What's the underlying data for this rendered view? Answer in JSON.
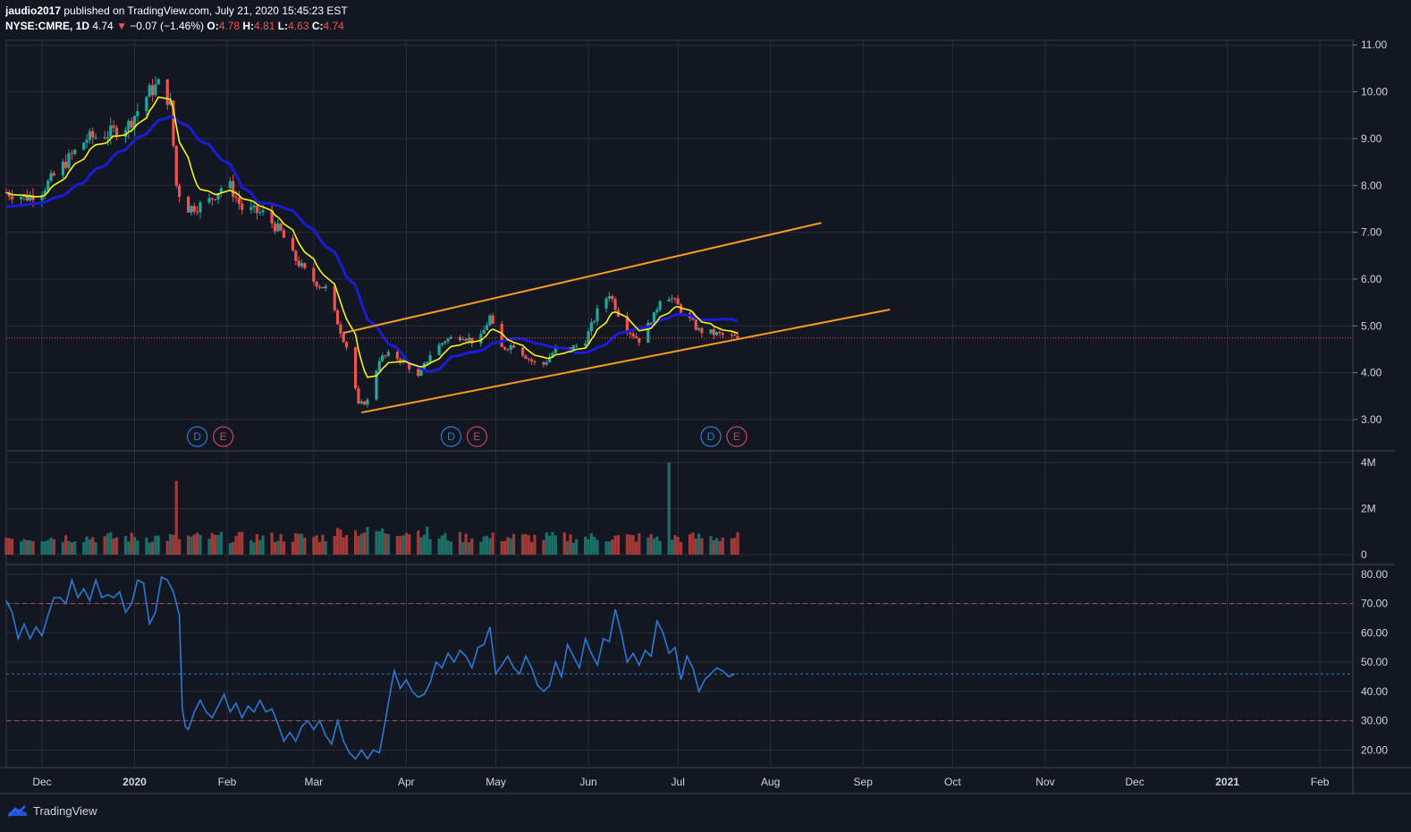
{
  "header": {
    "author": "jaudio2017",
    "published_text": "published on TradingView.com, July 21, 2020 15:45:23 EST",
    "symbol": "NYSE:CMRE, 1D",
    "last": "4.74",
    "change_arrow": "▼",
    "change": "−0.07 (−1.46%)",
    "o_label": "O:",
    "o": "4.78",
    "h_label": "H:",
    "h": "4.81",
    "l_label": "L:",
    "l": "4.63",
    "c_label": "C:",
    "c": "4.74"
  },
  "footer": {
    "brand": "TradingView"
  },
  "colors": {
    "background": "#131722",
    "grid": "#2a2e39",
    "up": "#26a69a",
    "down": "#ef5350",
    "ma_fast": "#f5f514",
    "ma_slow": "#1c1cd8",
    "channel": "#f59b22",
    "rsi": "#2c79d3",
    "rsi_mid": "#2c79d3",
    "rsi_bands": "#b24d5d"
  },
  "chart_data": [
    {
      "type": "candlestick",
      "name": "price",
      "x_labels": [
        "Dec",
        "2020",
        "Feb",
        "Mar",
        "Apr",
        "May",
        "Jun",
        "Jul",
        "Aug",
        "Sep",
        "Oct",
        "Nov",
        "Dec",
        "2021",
        "Feb"
      ],
      "x_label_days": [
        0,
        31,
        62,
        91,
        122,
        152,
        183,
        213,
        244,
        275,
        305,
        336,
        366,
        397,
        428
      ],
      "bold_labels": [
        "2020",
        "2021"
      ],
      "y_ticks": [
        "3.00",
        "4.00",
        "5.00",
        "6.00",
        "7.00",
        "8.00",
        "9.00",
        "10.00",
        "11.00"
      ],
      "ylim": [
        2.35,
        11.1
      ],
      "last_price": 4.74,
      "candles_note": "daily OHLC, Dec 2019 - Jul 21 2020",
      "ohlc_anchor_closes": [
        [
          -12,
          7.85
        ],
        [
          -5,
          7.75
        ],
        [
          0,
          7.9
        ],
        [
          8,
          8.5
        ],
        [
          15,
          9.0
        ],
        [
          22,
          9.1
        ],
        [
          29,
          9.3
        ],
        [
          36,
          10.0
        ],
        [
          40,
          10.2
        ],
        [
          43,
          9.7
        ],
        [
          45,
          8.0
        ],
        [
          48,
          7.5
        ],
        [
          55,
          7.6
        ],
        [
          62,
          8.1
        ],
        [
          67,
          7.5
        ],
        [
          74,
          7.4
        ],
        [
          80,
          7.0
        ],
        [
          84,
          6.5
        ],
        [
          90,
          6.0
        ],
        [
          95,
          5.8
        ],
        [
          100,
          4.9
        ],
        [
          103,
          4.4
        ],
        [
          106,
          3.3
        ],
        [
          109,
          3.4
        ],
        [
          113,
          4.3
        ],
        [
          117,
          4.4
        ],
        [
          122,
          4.2
        ],
        [
          126,
          3.9
        ],
        [
          130,
          4.4
        ],
        [
          135,
          4.7
        ],
        [
          141,
          4.8
        ],
        [
          146,
          4.6
        ],
        [
          150,
          5.2
        ],
        [
          153,
          4.5
        ],
        [
          158,
          4.6
        ],
        [
          163,
          4.3
        ],
        [
          167,
          4.1
        ],
        [
          172,
          4.5
        ],
        [
          177,
          4.5
        ],
        [
          182,
          4.7
        ],
        [
          186,
          5.3
        ],
        [
          190,
          5.7
        ],
        [
          195,
          5.0
        ],
        [
          200,
          4.7
        ],
        [
          205,
          5.2
        ],
        [
          208,
          5.8
        ],
        [
          212,
          5.5
        ],
        [
          216,
          5.2
        ],
        [
          220,
          4.9
        ],
        [
          224,
          4.85
        ],
        [
          228,
          4.8
        ],
        [
          233,
          4.74
        ]
      ],
      "moving_averages": [
        "fast (yellow)",
        "slow (blue)"
      ],
      "channel": {
        "upper": [
          [
            101,
            4.85
          ],
          [
            261,
            7.2
          ]
        ],
        "lower": [
          [
            107,
            3.15
          ],
          [
            284,
            5.35
          ]
        ]
      },
      "events": [
        {
          "day": 52,
          "labels": [
            "D",
            "E"
          ]
        },
        {
          "day": 137,
          "labels": [
            "D",
            "E"
          ]
        },
        {
          "day": 224,
          "labels": [
            "D",
            "E"
          ]
        }
      ]
    },
    {
      "type": "bar",
      "name": "volume",
      "y_ticks": [
        "0",
        "2M",
        "4M"
      ],
      "ylim": [
        0,
        4000000
      ],
      "spikes": [
        [
          45,
          3200000
        ],
        [
          47,
          2900000
        ],
        [
          210,
          4000000
        ],
        [
          209,
          1600000
        ]
      ]
    },
    {
      "type": "line",
      "name": "RSI",
      "y_ticks": [
        "20.00",
        "30.00",
        "40.00",
        "50.00",
        "60.00",
        "70.00",
        "80.00"
      ],
      "ylim": [
        14,
        83
      ],
      "bands": [
        30,
        70
      ],
      "mid": 46,
      "points": [
        [
          -12,
          71
        ],
        [
          -10,
          67
        ],
        [
          -8,
          58
        ],
        [
          -6,
          63
        ],
        [
          -4,
          58
        ],
        [
          -2,
          62
        ],
        [
          0,
          59
        ],
        [
          2,
          66
        ],
        [
          4,
          72
        ],
        [
          6,
          72
        ],
        [
          8,
          70
        ],
        [
          10,
          78
        ],
        [
          12,
          72
        ],
        [
          14,
          75
        ],
        [
          16,
          71
        ],
        [
          18,
          78
        ],
        [
          20,
          72
        ],
        [
          22,
          73
        ],
        [
          24,
          72
        ],
        [
          26,
          74
        ],
        [
          28,
          67
        ],
        [
          30,
          70
        ],
        [
          32,
          78
        ],
        [
          34,
          77
        ],
        [
          36,
          63
        ],
        [
          38,
          67
        ],
        [
          40,
          79
        ],
        [
          42,
          78
        ],
        [
          44,
          74
        ],
        [
          46,
          66
        ],
        [
          47,
          34
        ],
        [
          48,
          28
        ],
        [
          49,
          27
        ],
        [
          51,
          33
        ],
        [
          53,
          37
        ],
        [
          55,
          33
        ],
        [
          57,
          31
        ],
        [
          59,
          35
        ],
        [
          61,
          39
        ],
        [
          63,
          33
        ],
        [
          65,
          36
        ],
        [
          67,
          31
        ],
        [
          69,
          35
        ],
        [
          71,
          33
        ],
        [
          73,
          37
        ],
        [
          75,
          33
        ],
        [
          77,
          34
        ],
        [
          79,
          29
        ],
        [
          81,
          23
        ],
        [
          83,
          26
        ],
        [
          85,
          23
        ],
        [
          87,
          28
        ],
        [
          89,
          30
        ],
        [
          91,
          27
        ],
        [
          93,
          30
        ],
        [
          95,
          25
        ],
        [
          97,
          22
        ],
        [
          99,
          30
        ],
        [
          101,
          23
        ],
        [
          103,
          19
        ],
        [
          105,
          17
        ],
        [
          107,
          20
        ],
        [
          109,
          17
        ],
        [
          111,
          20
        ],
        [
          113,
          19
        ],
        [
          115,
          30
        ],
        [
          117,
          42
        ],
        [
          118,
          47
        ],
        [
          120,
          41
        ],
        [
          122,
          44
        ],
        [
          124,
          40
        ],
        [
          126,
          38
        ],
        [
          128,
          39
        ],
        [
          130,
          43
        ],
        [
          132,
          50
        ],
        [
          134,
          48
        ],
        [
          136,
          53
        ],
        [
          138,
          50
        ],
        [
          140,
          54
        ],
        [
          142,
          52
        ],
        [
          144,
          48
        ],
        [
          146,
          55
        ],
        [
          148,
          56
        ],
        [
          150,
          62
        ],
        [
          152,
          46
        ],
        [
          154,
          49
        ],
        [
          156,
          52
        ],
        [
          158,
          48
        ],
        [
          160,
          46
        ],
        [
          162,
          52
        ],
        [
          164,
          48
        ],
        [
          166,
          42
        ],
        [
          168,
          40
        ],
        [
          170,
          42
        ],
        [
          172,
          50
        ],
        [
          174,
          45
        ],
        [
          176,
          56
        ],
        [
          178,
          52
        ],
        [
          180,
          48
        ],
        [
          182,
          58
        ],
        [
          184,
          53
        ],
        [
          186,
          49
        ],
        [
          188,
          58
        ],
        [
          190,
          57
        ],
        [
          192,
          68
        ],
        [
          194,
          60
        ],
        [
          196,
          50
        ],
        [
          198,
          53
        ],
        [
          200,
          49
        ],
        [
          202,
          54
        ],
        [
          204,
          52
        ],
        [
          206,
          64
        ],
        [
          208,
          60
        ],
        [
          210,
          53
        ],
        [
          212,
          55
        ],
        [
          214,
          44
        ],
        [
          216,
          52
        ],
        [
          218,
          48
        ],
        [
          220,
          40
        ],
        [
          222,
          44
        ],
        [
          224,
          46
        ],
        [
          226,
          48
        ],
        [
          228,
          47
        ],
        [
          230,
          45
        ],
        [
          232,
          46
        ]
      ]
    }
  ]
}
